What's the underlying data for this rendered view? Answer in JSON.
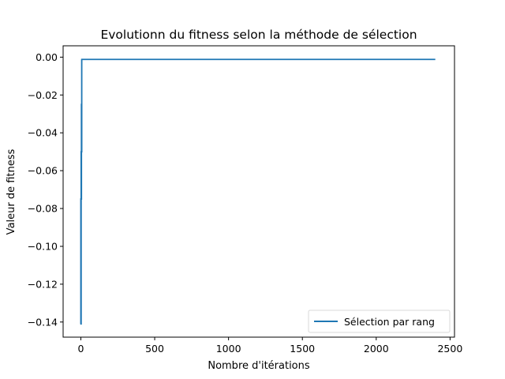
{
  "chart_data": {
    "type": "line",
    "title": "Evolutionn du fitness selon la méthode de sélection",
    "xlabel": "Nombre d'itérations",
    "ylabel": "Valeur de fitness",
    "xlim": [
      -120,
      2530
    ],
    "ylim": [
      -0.148,
      0.006
    ],
    "xticks": [
      0,
      500,
      1000,
      1500,
      2000,
      2500
    ],
    "yticks": [
      0.0,
      -0.02,
      -0.04,
      -0.06,
      -0.08,
      -0.1,
      -0.12,
      -0.14
    ],
    "xtick_labels": [
      "0",
      "500",
      "1000",
      "1500",
      "2000",
      "2500"
    ],
    "ytick_labels": [
      "0.00",
      "−0.02",
      "−0.04",
      "−0.06",
      "−0.08",
      "−0.10",
      "−0.12",
      "−0.14"
    ],
    "grid": false,
    "legend": {
      "position": "lower-right"
    },
    "series": [
      {
        "name": "Sélection par rang",
        "color": "#1f77b4",
        "x": [
          0,
          0,
          1,
          1,
          2,
          2,
          3,
          3,
          4,
          4,
          5,
          5,
          6,
          6,
          7,
          7,
          2400
        ],
        "y": [
          -0.141,
          -0.075,
          -0.075,
          -0.141,
          -0.141,
          -0.05,
          -0.05,
          -0.075,
          -0.075,
          -0.025,
          -0.025,
          -0.05,
          -0.05,
          -0.001,
          -0.0015,
          -0.0012,
          -0.0012
        ]
      }
    ]
  }
}
